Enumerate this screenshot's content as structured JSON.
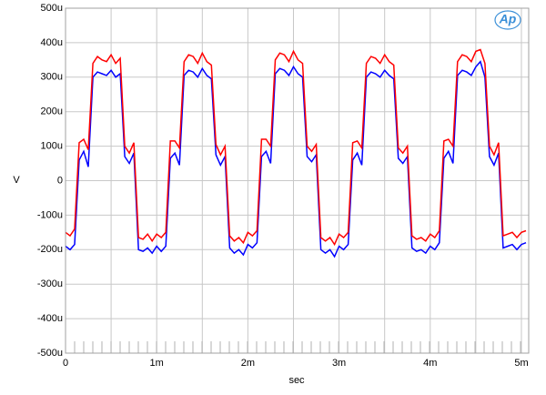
{
  "chart_data": {
    "type": "line",
    "logo": "Ap",
    "xlabel": "sec",
    "ylabel": "V",
    "xlim": [
      0,
      0.00508
    ],
    "ylim": [
      -0.0005,
      0.0005
    ],
    "xticks": [
      {
        "value": 0,
        "label": "0"
      },
      {
        "value": 0.001,
        "label": "1m"
      },
      {
        "value": 0.002,
        "label": "2m"
      },
      {
        "value": 0.003,
        "label": "3m"
      },
      {
        "value": 0.004,
        "label": "4m"
      },
      {
        "value": 0.005,
        "label": "5m"
      }
    ],
    "xgrid": [
      0.0005,
      0.0015,
      0.0025,
      0.0035,
      0.0045
    ],
    "yticks": [
      {
        "value": -0.0005,
        "label": "-500u"
      },
      {
        "value": -0.0004,
        "label": "-400u"
      },
      {
        "value": -0.0003,
        "label": "-300u"
      },
      {
        "value": -0.0002,
        "label": "-200u"
      },
      {
        "value": -0.0001,
        "label": "-100u"
      },
      {
        "value": 0,
        "label": "0"
      },
      {
        "value": 0.0001,
        "label": "100u"
      },
      {
        "value": 0.0002,
        "label": "200u"
      },
      {
        "value": 0.0003,
        "label": "300u"
      },
      {
        "value": 0.0004,
        "label": "400u"
      },
      {
        "value": 0.0005,
        "label": "500u"
      }
    ],
    "grid": true,
    "x": [
      0,
      5e-05,
      0.0001,
      0.00015,
      0.0002,
      0.00025,
      0.0003,
      0.00035,
      0.0004,
      0.00045,
      0.0005,
      0.00055,
      0.0006,
      0.00065,
      0.0007,
      0.00075,
      0.0008,
      0.00085,
      0.0009,
      0.00095,
      0.001,
      0.00105,
      0.0011,
      0.00115,
      0.0012,
      0.00125,
      0.0013,
      0.00135,
      0.0014,
      0.00145,
      0.0015,
      0.00155,
      0.0016,
      0.00165,
      0.0017,
      0.00175,
      0.0018,
      0.00185,
      0.0019,
      0.00195,
      0.002,
      0.00205,
      0.0021,
      0.00215,
      0.0022,
      0.00225,
      0.0023,
      0.00235,
      0.0024,
      0.00245,
      0.0025,
      0.00255,
      0.0026,
      0.00265,
      0.0027,
      0.00275,
      0.0028,
      0.00285,
      0.0029,
      0.00295,
      0.003,
      0.00305,
      0.0031,
      0.00315,
      0.0032,
      0.00325,
      0.0033,
      0.00335,
      0.0034,
      0.00345,
      0.0035,
      0.00355,
      0.0036,
      0.00365,
      0.0037,
      0.00375,
      0.0038,
      0.00385,
      0.0039,
      0.00395,
      0.004,
      0.00405,
      0.0041,
      0.00415,
      0.0042,
      0.00425,
      0.0043,
      0.00435,
      0.0044,
      0.00445,
      0.0045,
      0.00455,
      0.0046,
      0.00465,
      0.0047,
      0.00475,
      0.0048,
      0.00485,
      0.0049,
      0.00495,
      0.005,
      0.00505
    ],
    "series": [
      {
        "color": "#0000ff",
        "values": [
          -0.00019,
          -0.0002,
          -0.000185,
          6e-05,
          8.5e-05,
          4e-05,
          0.0003,
          0.000315,
          0.00031,
          0.000305,
          0.00032,
          0.0003,
          0.00031,
          7e-05,
          5e-05,
          8e-05,
          -0.0002,
          -0.000205,
          -0.000195,
          -0.00021,
          -0.00019,
          -0.000205,
          -0.00019,
          6.5e-05,
          8e-05,
          4.5e-05,
          0.000305,
          0.00032,
          0.000315,
          0.0003,
          0.000325,
          0.000305,
          0.000295,
          7.5e-05,
          4.5e-05,
          7e-05,
          -0.000195,
          -0.00021,
          -0.0002,
          -0.000215,
          -0.000185,
          -0.000195,
          -0.00018,
          7e-05,
          8.5e-05,
          5e-05,
          0.00031,
          0.000325,
          0.00032,
          0.000305,
          0.00033,
          0.00031,
          0.0003,
          7e-05,
          5.5e-05,
          7.5e-05,
          -0.0002,
          -0.00021,
          -0.0002,
          -0.00022,
          -0.00019,
          -0.0002,
          -0.000185,
          6e-05,
          8e-05,
          4.5e-05,
          0.0003,
          0.000315,
          0.00031,
          0.0003,
          0.00032,
          0.000305,
          0.000295,
          6.5e-05,
          5e-05,
          7e-05,
          -0.000195,
          -0.000205,
          -0.0002,
          -0.00021,
          -0.00019,
          -0.0002,
          -0.00018,
          6.5e-05,
          8.5e-05,
          5e-05,
          0.000305,
          0.00032,
          0.000315,
          0.000305,
          0.00033,
          0.000345,
          0.0003,
          7e-05,
          4.5e-05,
          8e-05,
          -0.000195,
          -0.00019,
          -0.000185,
          -0.0002,
          -0.000185,
          -0.00018
        ]
      },
      {
        "color": "#ff0000",
        "values": [
          -0.00015,
          -0.00016,
          -0.00014,
          0.00011,
          0.00012,
          9e-05,
          0.00034,
          0.00036,
          0.00035,
          0.000345,
          0.000365,
          0.00034,
          0.000355,
          0.0001,
          8e-05,
          0.00011,
          -0.000165,
          -0.00017,
          -0.000155,
          -0.000175,
          -0.000155,
          -0.000165,
          -0.00015,
          0.000115,
          0.000115,
          9.5e-05,
          0.000345,
          0.000365,
          0.00036,
          0.00034,
          0.00037,
          0.000345,
          0.000335,
          0.000105,
          7.5e-05,
          0.0001,
          -0.00016,
          -0.000175,
          -0.000165,
          -0.00018,
          -0.00015,
          -0.00016,
          -0.000145,
          0.00012,
          0.00012,
          0.0001,
          0.00035,
          0.00037,
          0.000365,
          0.000345,
          0.000375,
          0.00035,
          0.00034,
          0.0001,
          8.5e-05,
          0.000105,
          -0.000165,
          -0.000175,
          -0.000165,
          -0.000185,
          -0.000155,
          -0.000165,
          -0.00015,
          0.00011,
          0.000115,
          9.5e-05,
          0.00034,
          0.00036,
          0.000355,
          0.00034,
          0.000365,
          0.000345,
          0.000335,
          9.5e-05,
          8e-05,
          0.0001,
          -0.00016,
          -0.00017,
          -0.000165,
          -0.000175,
          -0.000155,
          -0.000165,
          -0.000145,
          0.000115,
          0.00012,
          0.0001,
          0.000345,
          0.000365,
          0.00036,
          0.000345,
          0.000375,
          0.00038,
          0.00034,
          0.0001,
          7.5e-05,
          0.00011,
          -0.00016,
          -0.000155,
          -0.00015,
          -0.000165,
          -0.00015,
          -0.000145
        ]
      }
    ]
  }
}
